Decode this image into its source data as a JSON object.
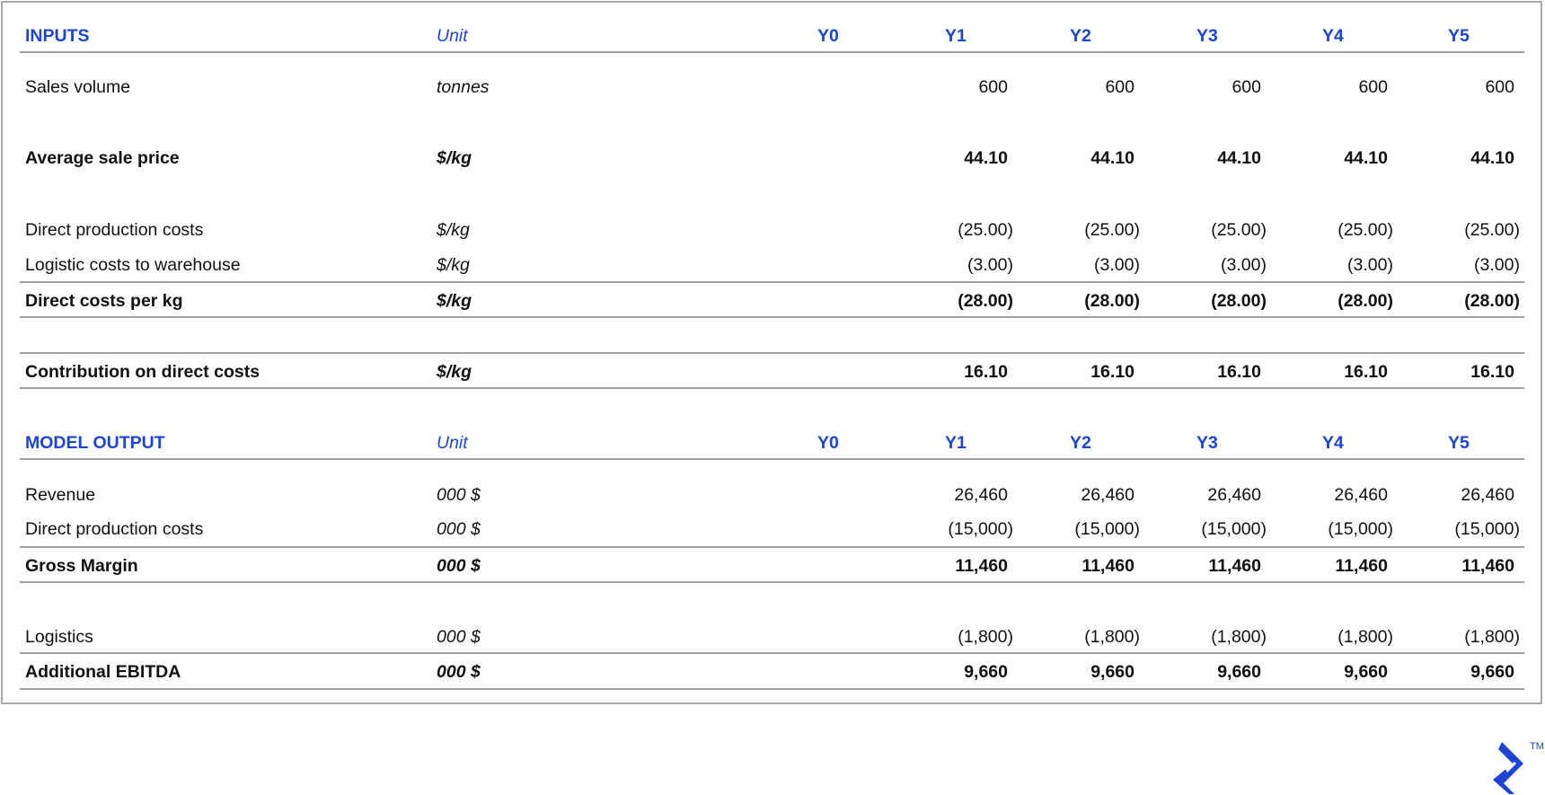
{
  "years": [
    "Y0",
    "Y1",
    "Y2",
    "Y3",
    "Y4",
    "Y5"
  ],
  "inputs": {
    "title": "INPUTS",
    "unit_header": "Unit",
    "rows": [
      {
        "label": "Sales volume",
        "unit": "tonnes",
        "bold": false,
        "values": [
          "",
          "600",
          "600",
          "600",
          "600",
          "600"
        ]
      },
      {
        "label": "Average sale price",
        "unit": "$/kg",
        "bold": true,
        "values": [
          "",
          "44.10",
          "44.10",
          "44.10",
          "44.10",
          "44.10"
        ]
      },
      {
        "label": "Direct production costs",
        "unit": "$/kg",
        "bold": false,
        "values": [
          "",
          "(25.00)",
          "(25.00)",
          "(25.00)",
          "(25.00)",
          "(25.00)"
        ]
      },
      {
        "label": "Logistic costs to warehouse",
        "unit": "$/kg",
        "bold": false,
        "values": [
          "",
          "(3.00)",
          "(3.00)",
          "(3.00)",
          "(3.00)",
          "(3.00)"
        ]
      },
      {
        "label": "Direct costs per kg",
        "unit": "$/kg",
        "bold": true,
        "values": [
          "",
          "(28.00)",
          "(28.00)",
          "(28.00)",
          "(28.00)",
          "(28.00)"
        ]
      },
      {
        "label": "Contribution on direct costs",
        "unit": "$/kg",
        "bold": true,
        "values": [
          "",
          "16.10",
          "16.10",
          "16.10",
          "16.10",
          "16.10"
        ]
      }
    ]
  },
  "output": {
    "title": "MODEL OUTPUT",
    "unit_header": "Unit",
    "rows": [
      {
        "label": "Revenue",
        "unit": "000 $",
        "bold": false,
        "values": [
          "",
          "26,460",
          "26,460",
          "26,460",
          "26,460",
          "26,460"
        ]
      },
      {
        "label": "Direct production costs",
        "unit": "000 $",
        "bold": false,
        "values": [
          "",
          "(15,000)",
          "(15,000)",
          "(15,000)",
          "(15,000)",
          "(15,000)"
        ]
      },
      {
        "label": "Gross Margin",
        "unit": "000 $",
        "bold": true,
        "values": [
          "",
          "11,460",
          "11,460",
          "11,460",
          "11,460",
          "11,460"
        ]
      },
      {
        "label": "Logistics",
        "unit": "000 $",
        "bold": false,
        "values": [
          "",
          "(1,800)",
          "(1,800)",
          "(1,800)",
          "(1,800)",
          "(1,800)"
        ]
      },
      {
        "label": "Additional EBITDA",
        "unit": "000 $",
        "bold": true,
        "values": [
          "",
          "9,660",
          "9,660",
          "9,660",
          "9,660",
          "9,660"
        ]
      }
    ]
  },
  "logo": {
    "trademark": "TM",
    "color": "#1d44d4"
  },
  "colors": {
    "accent": "#1d44d4",
    "rule": "#a0a0a0"
  }
}
